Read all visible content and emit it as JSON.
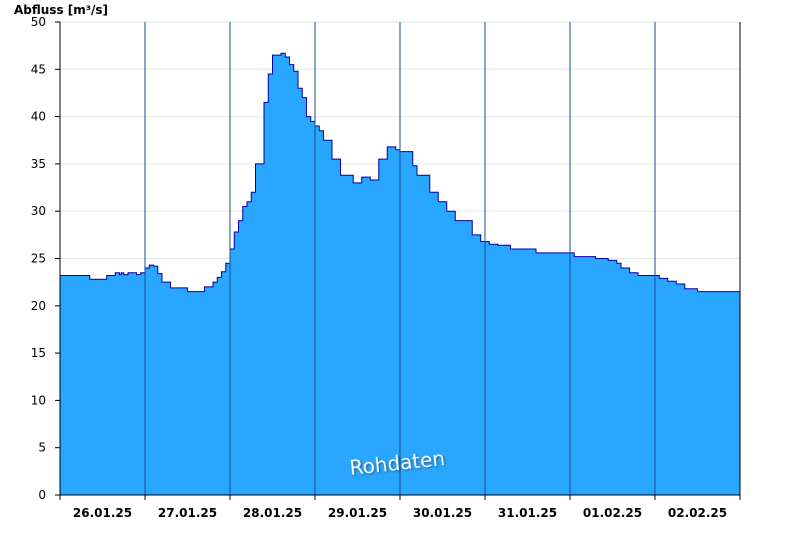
{
  "chart_data": {
    "type": "area",
    "ylabel": "Abfluss [m³/s]",
    "ylim": [
      0,
      50
    ],
    "yticks": [
      "0",
      "5",
      "10",
      "15",
      "20",
      "25",
      "30",
      "35",
      "40",
      "45",
      "50"
    ],
    "x_range_days": [
      0,
      8
    ],
    "x_tick_labels": [
      "26.01.25",
      "27.01.25",
      "28.01.25",
      "29.01.25",
      "30.01.25",
      "31.01.25",
      "01.02.25",
      "02.02.25"
    ],
    "grid": true,
    "fill_color": "#29a6ff",
    "line_color": "#0000aa",
    "watermark": "Rohdaten",
    "series": [
      {
        "x": [
          0.0,
          0.3,
          0.35,
          0.5,
          0.55,
          0.65,
          0.7,
          0.72,
          0.75,
          0.8,
          0.9,
          0.95,
          1.0,
          1.05,
          1.1,
          1.15,
          1.2,
          1.3,
          1.4,
          1.5,
          1.6,
          1.7,
          1.8,
          1.85,
          1.9,
          1.95,
          2.0,
          2.05,
          2.1,
          2.15,
          2.2,
          2.25,
          2.3,
          2.4,
          2.45,
          2.5,
          2.55,
          2.6,
          2.65,
          2.7,
          2.75,
          2.8,
          2.85,
          2.9,
          2.95,
          3.0,
          3.05,
          3.1,
          3.2,
          3.3,
          3.35,
          3.45,
          3.55,
          3.65,
          3.75,
          3.85,
          3.9,
          3.95,
          4.0,
          4.05,
          4.15,
          4.2,
          4.35,
          4.45,
          4.55,
          4.65,
          4.75,
          4.85,
          4.95,
          5.0,
          5.05,
          5.15,
          5.3,
          5.45,
          5.6,
          5.75,
          6.0,
          6.05,
          6.3,
          6.45,
          6.55,
          6.6,
          6.7,
          6.8,
          6.95,
          7.05,
          7.15,
          7.25,
          7.35,
          7.5,
          7.8,
          8.0
        ],
        "values": [
          23.2,
          23.2,
          22.8,
          22.8,
          23.2,
          23.5,
          23.3,
          23.5,
          23.3,
          23.5,
          23.3,
          23.5,
          24.0,
          24.3,
          24.2,
          23.4,
          22.5,
          21.9,
          21.9,
          21.5,
          21.5,
          22.0,
          22.5,
          23.0,
          23.6,
          24.5,
          26.0,
          27.8,
          29.0,
          30.5,
          31.0,
          32.0,
          35.0,
          41.5,
          44.5,
          46.5,
          46.5,
          46.7,
          46.3,
          45.5,
          44.8,
          43.0,
          42.0,
          40.0,
          39.5,
          39.0,
          38.5,
          37.5,
          35.5,
          33.8,
          33.8,
          33.0,
          33.6,
          33.3,
          35.5,
          36.8,
          36.8,
          36.5,
          36.3,
          36.3,
          34.8,
          33.8,
          32.0,
          31.0,
          30.0,
          29.0,
          29.0,
          27.5,
          26.8,
          26.8,
          26.5,
          26.4,
          26.0,
          26.0,
          25.6,
          25.6,
          25.6,
          25.2,
          25.0,
          24.8,
          24.5,
          24.0,
          23.5,
          23.2,
          23.2,
          22.9,
          22.6,
          22.3,
          21.8,
          21.5,
          21.5,
          22.0
        ]
      }
    ]
  }
}
